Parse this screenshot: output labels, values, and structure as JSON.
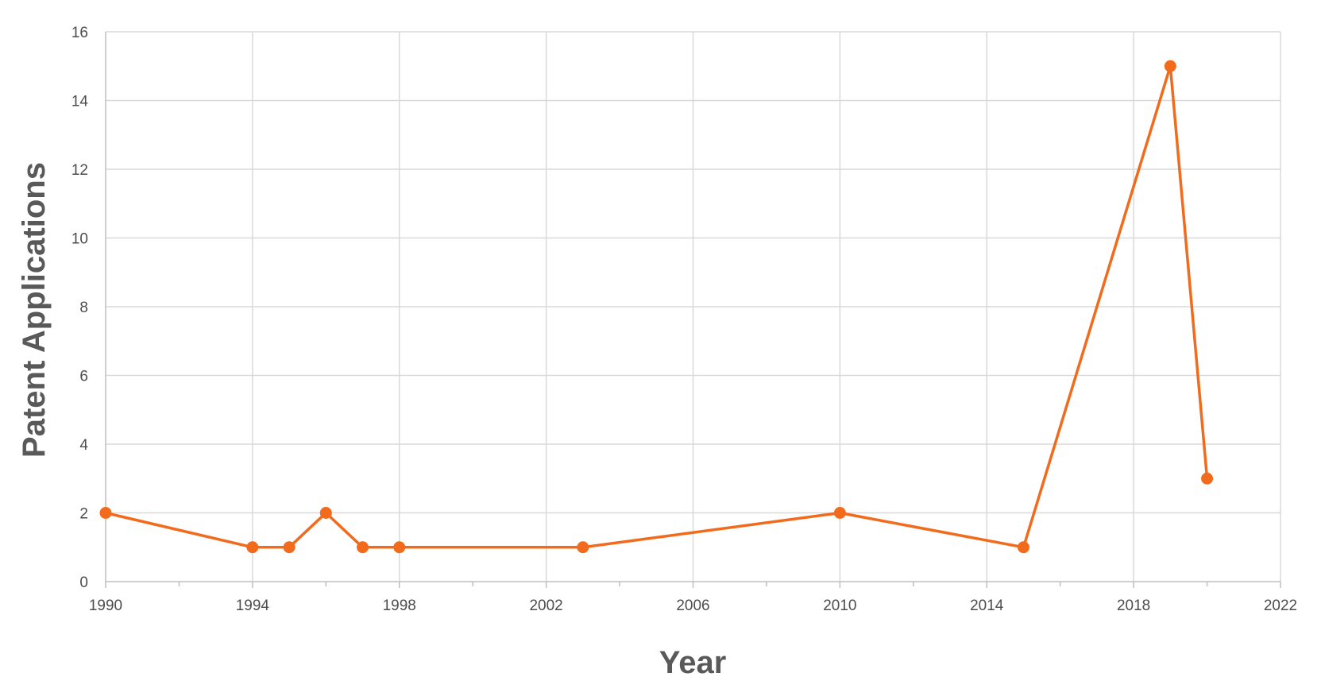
{
  "chart_data": {
    "type": "line",
    "title": "",
    "xlabel": "Year",
    "ylabel": "Patent Applications",
    "xlim": [
      1990,
      2022
    ],
    "ylim": [
      0,
      16
    ],
    "x_ticks": [
      1990,
      1994,
      1998,
      2002,
      2006,
      2010,
      2014,
      2018,
      2022
    ],
    "x_minor_ticks": [
      1992,
      1996,
      2000,
      2004,
      2008,
      2012,
      2016,
      2020
    ],
    "y_ticks": [
      0,
      2,
      4,
      6,
      8,
      10,
      12,
      14,
      16
    ],
    "grid": true,
    "legend": "none",
    "series": [
      {
        "color": "#F26B1D",
        "marker": "circle",
        "x": [
          1990,
          1994,
          1995,
          1996,
          1997,
          1998,
          2003,
          2010,
          2015,
          2019,
          2020
        ],
        "y": [
          2,
          1,
          1,
          2,
          1,
          1,
          1,
          2,
          1,
          15,
          3
        ]
      }
    ]
  }
}
